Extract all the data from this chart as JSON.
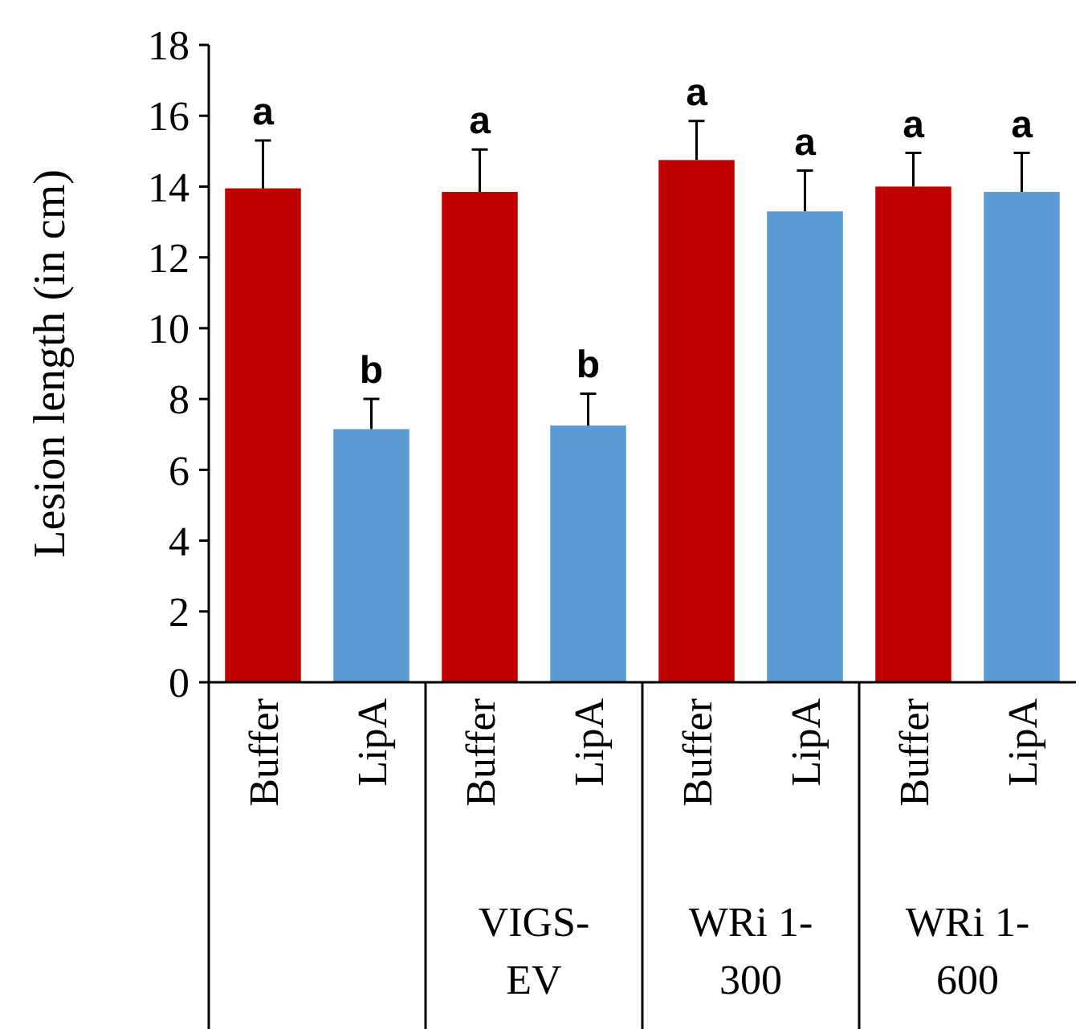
{
  "chart_data": {
    "type": "bar",
    "ylabel": "Lesion length (in cm)",
    "categories": [
      "Buffer",
      "LipA",
      "Buffer",
      "LipA",
      "Buffer",
      "LipA",
      "Buffer",
      "LipA"
    ],
    "values": [
      13.95,
      7.15,
      13.85,
      7.25,
      14.75,
      13.3,
      14.0,
      13.85
    ],
    "colors": [
      "#c00000",
      "#5b9bd5",
      "#c00000",
      "#5b9bd5",
      "#c00000",
      "#5b9bd5",
      "#c00000",
      "#5b9bd5"
    ],
    "errors": [
      [
        13.95,
        15.3
      ],
      [
        7.15,
        8.0
      ],
      [
        13.85,
        15.05
      ],
      [
        7.25,
        8.15
      ],
      [
        14.75,
        15.85
      ],
      [
        13.3,
        14.45
      ],
      [
        14.0,
        14.95
      ],
      [
        13.85,
        14.95
      ]
    ],
    "ylim": [
      0,
      18
    ],
    "yticks": [
      0,
      2,
      4,
      6,
      8,
      10,
      12,
      14,
      16,
      18
    ],
    "grid": false,
    "annotations": [
      "a",
      "b",
      "a",
      "b",
      "a",
      "a",
      "a",
      "a",
      "VIGS-EV",
      "WRi 1-300",
      "WRi 1-600"
    ]
  }
}
